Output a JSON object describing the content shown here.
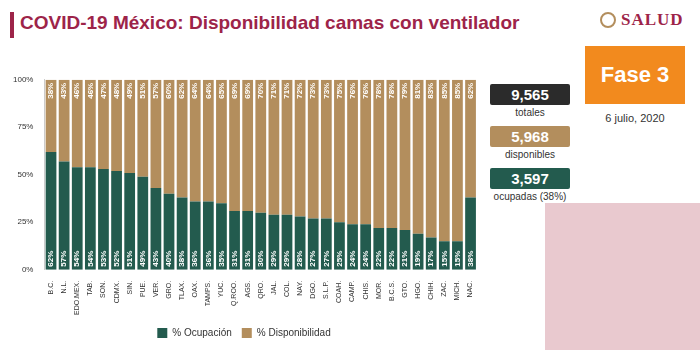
{
  "header": {
    "title": "COVID-19 México: Disponibilidad camas con ventilador",
    "logo": "SALUD"
  },
  "panel": {
    "phase": "Fase 3",
    "date": "6 julio, 2020",
    "stats": [
      {
        "value": "9,565",
        "label": "totales"
      },
      {
        "value": "5,968",
        "label": "disponibles"
      },
      {
        "value": "3,597",
        "label": "ocupadas (38%)"
      }
    ]
  },
  "chart_data": {
    "type": "bar",
    "stacked": true,
    "data_labels": true,
    "legend": "bottom",
    "grid": false,
    "categories": [
      "B.C.",
      "N.L.",
      "EDO.MEX.",
      "TAB.",
      "SON.",
      "CDMX.",
      "SIN.",
      "PUE.",
      "VER.",
      "GRO.",
      "TLAX.",
      "OAX.",
      "TAMPS.",
      "YUC.",
      "Q.ROO.",
      "AGS.",
      "QRO.",
      "JAL.",
      "COL.",
      "NAY.",
      "DGO.",
      "S.L.P.",
      "COAH.",
      "CAMP.",
      "CHIS.",
      "MOR.",
      "B.C.S.",
      "GTO.",
      "HGO.",
      "CHIH.",
      "ZAC.",
      "MICH.",
      "NAC."
    ],
    "series": [
      {
        "name": "% Ocupación",
        "color": "#235b4e",
        "values": [
          62,
          57,
          54,
          54,
          53,
          52,
          51,
          49,
          43,
          40,
          38,
          36,
          36,
          35,
          31,
          31,
          30,
          29,
          29,
          28,
          27,
          27,
          25,
          24,
          24,
          22,
          22,
          21,
          19,
          17,
          15,
          15,
          38
        ],
        "value_labels": [
          "62%",
          "57%",
          "54%",
          "54%",
          "53%",
          "52%",
          "51%",
          "49%",
          "43%",
          "40%",
          "38%",
          "36%",
          "36%",
          "35%",
          "31%",
          "31%",
          "30%",
          "29%",
          "29%",
          "28%",
          "27%",
          "27%",
          "25%",
          "24%",
          "24%",
          "22%",
          "22%",
          "21%",
          "19%",
          "17%",
          "15%",
          "15%",
          "38%"
        ]
      },
      {
        "name": "% Disponibilidad",
        "color": "#b38e5d",
        "values": [
          38,
          43,
          46,
          46,
          47,
          48,
          49,
          51,
          57,
          60,
          62,
          64,
          64,
          65,
          69,
          69,
          70,
          71,
          71,
          72,
          73,
          73,
          75,
          76,
          76,
          78,
          78,
          79,
          81,
          83,
          85,
          85,
          62
        ],
        "value_labels": [
          "38%",
          "43%",
          "46%",
          "46%",
          "47%",
          "48%",
          "49%",
          "51%",
          "57%",
          "60%",
          "62%",
          "64%",
          "64%",
          "65%",
          "69%",
          "69%",
          "70%",
          "71%",
          "71%",
          "72%",
          "73%",
          "73%",
          "75%",
          "76%",
          "76%",
          "78%",
          "78%",
          "79%",
          "81%",
          "83%",
          "85%",
          "85%",
          "62%"
        ]
      }
    ],
    "ylim": [
      0,
      100
    ],
    "yticks": [
      {
        "value": 0,
        "label": "0%"
      },
      {
        "value": 25,
        "label": "25%"
      },
      {
        "value": 50,
        "label": "50%"
      },
      {
        "value": 75,
        "label": "75%"
      },
      {
        "value": 100,
        "label": "100%"
      }
    ]
  }
}
